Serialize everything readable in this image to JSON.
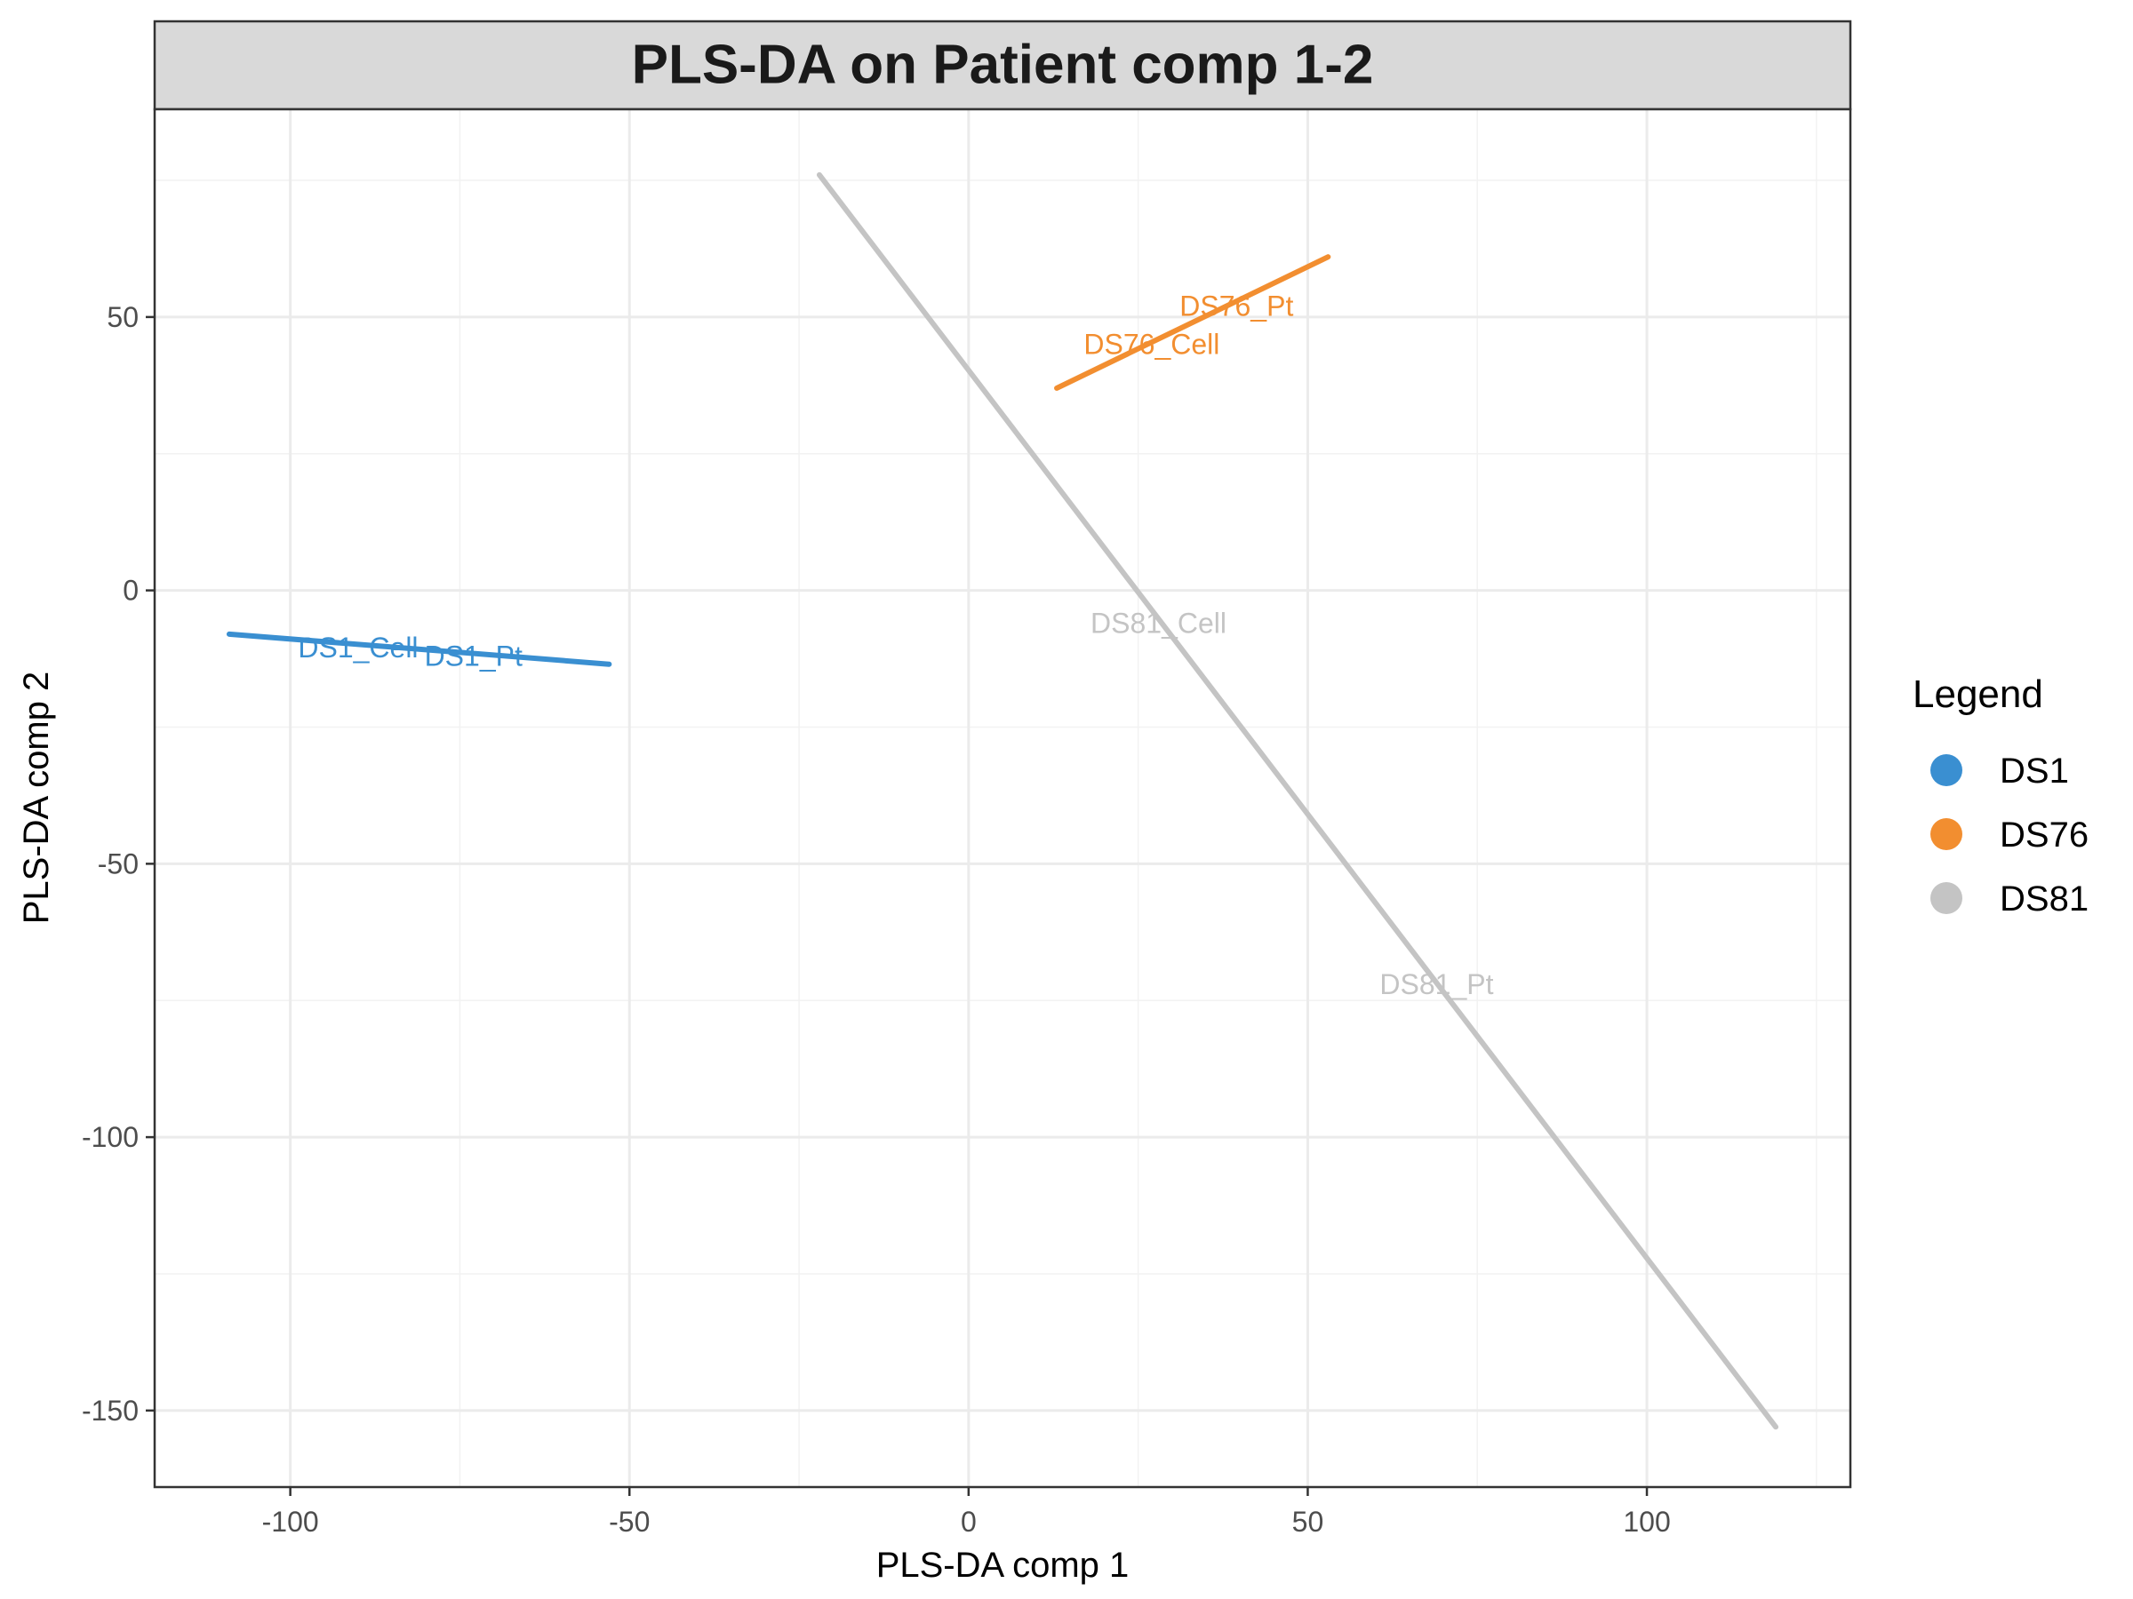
{
  "chart_data": {
    "type": "line",
    "title": "PLS-DA on Patient comp 1-2",
    "xlabel": "PLS-DA comp 1",
    "ylabel": "PLS-DA comp 2",
    "xlim": [
      -120,
      130
    ],
    "ylim": [
      -164,
      88
    ],
    "x_ticks": [
      -100,
      -50,
      0,
      50,
      100
    ],
    "x_tick_labels": [
      "-100",
      "-50",
      "0",
      "50",
      "100"
    ],
    "y_ticks": [
      50,
      0,
      -50,
      -100,
      -150
    ],
    "y_tick_labels": [
      "50",
      "0",
      "-50",
      "-100",
      "-150"
    ],
    "grid": true,
    "legend": {
      "title": "Legend",
      "position": "right",
      "entries": [
        {
          "label": "DS1",
          "color": "#3a8fd1"
        },
        {
          "label": "DS76",
          "color": "#f28e30"
        },
        {
          "label": "DS81",
          "color": "#c4c4c4"
        }
      ]
    },
    "series": [
      {
        "name": "DS1",
        "color": "#3a8fd1",
        "points": [
          {
            "x": -109,
            "y": -8
          },
          {
            "x": -53,
            "y": -13.5
          }
        ],
        "labels": [
          {
            "text": "DS1_Cell",
            "x": -90,
            "y": -10.5
          },
          {
            "text": "DS1_Pt",
            "x": -73,
            "y": -12
          }
        ]
      },
      {
        "name": "DS76",
        "color": "#f28e30",
        "points": [
          {
            "x": 13,
            "y": 37
          },
          {
            "x": 53,
            "y": 61
          }
        ],
        "labels": [
          {
            "text": "DS76_Cell",
            "x": 27,
            "y": 45
          },
          {
            "text": "DS76_Pt",
            "x": 39.5,
            "y": 52
          }
        ]
      },
      {
        "name": "DS81",
        "color": "#c4c4c4",
        "points": [
          {
            "x": -22,
            "y": 76
          },
          {
            "x": 119,
            "y": -153
          }
        ],
        "labels": [
          {
            "text": "DS81_Cell",
            "x": 28,
            "y": -6
          },
          {
            "text": "DS81_Pt",
            "x": 69,
            "y": -72
          }
        ]
      }
    ]
  }
}
